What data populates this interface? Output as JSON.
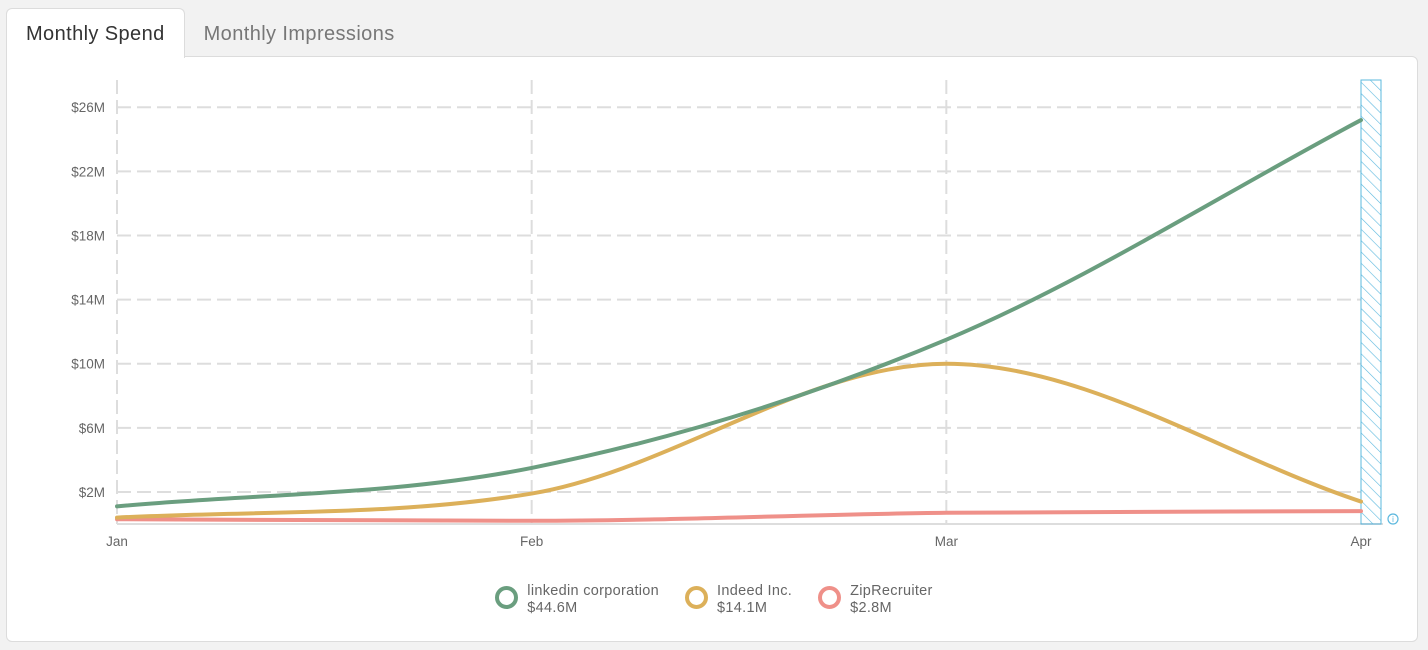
{
  "tabs": [
    {
      "label": "Monthly Spend",
      "active": true
    },
    {
      "label": "Monthly Impressions",
      "active": false
    }
  ],
  "colors": {
    "linkedin": "#6a9e7f",
    "indeed": "#dcb05a",
    "ziprecruiter": "#ef9089",
    "grid": "#dddddd",
    "projection": "#5bb8de"
  },
  "legend": [
    {
      "name": "linkedin corporation",
      "total": "$44.6M",
      "color": "#6a9e7f"
    },
    {
      "name": "Indeed Inc.",
      "total": "$14.1M",
      "color": "#dcb05a"
    },
    {
      "name": "ZipRecruiter",
      "total": "$2.8M",
      "color": "#ef9089"
    }
  ],
  "info_icon": "info-icon",
  "chart_data": {
    "type": "line",
    "title": "",
    "xlabel": "",
    "ylabel": "",
    "categories": [
      "Jan",
      "Feb",
      "Mar",
      "Apr"
    ],
    "y_ticks": [
      "$2M",
      "$6M",
      "$10M",
      "$14M",
      "$18M",
      "$22M",
      "$26M"
    ],
    "y_tick_values": [
      2,
      6,
      10,
      14,
      18,
      22,
      26
    ],
    "ylim": [
      0,
      27.7
    ],
    "y_unit": "$M",
    "grid": true,
    "legend_position": "bottom-center",
    "projected_region": "Apr",
    "series": [
      {
        "name": "linkedin corporation",
        "values": [
          1.1,
          3.5,
          11.5,
          25.2
        ]
      },
      {
        "name": "Indeed Inc.",
        "values": [
          0.4,
          1.9,
          10.0,
          1.4
        ]
      },
      {
        "name": "ZipRecruiter",
        "values": [
          0.3,
          0.2,
          0.7,
          0.8
        ]
      }
    ]
  }
}
